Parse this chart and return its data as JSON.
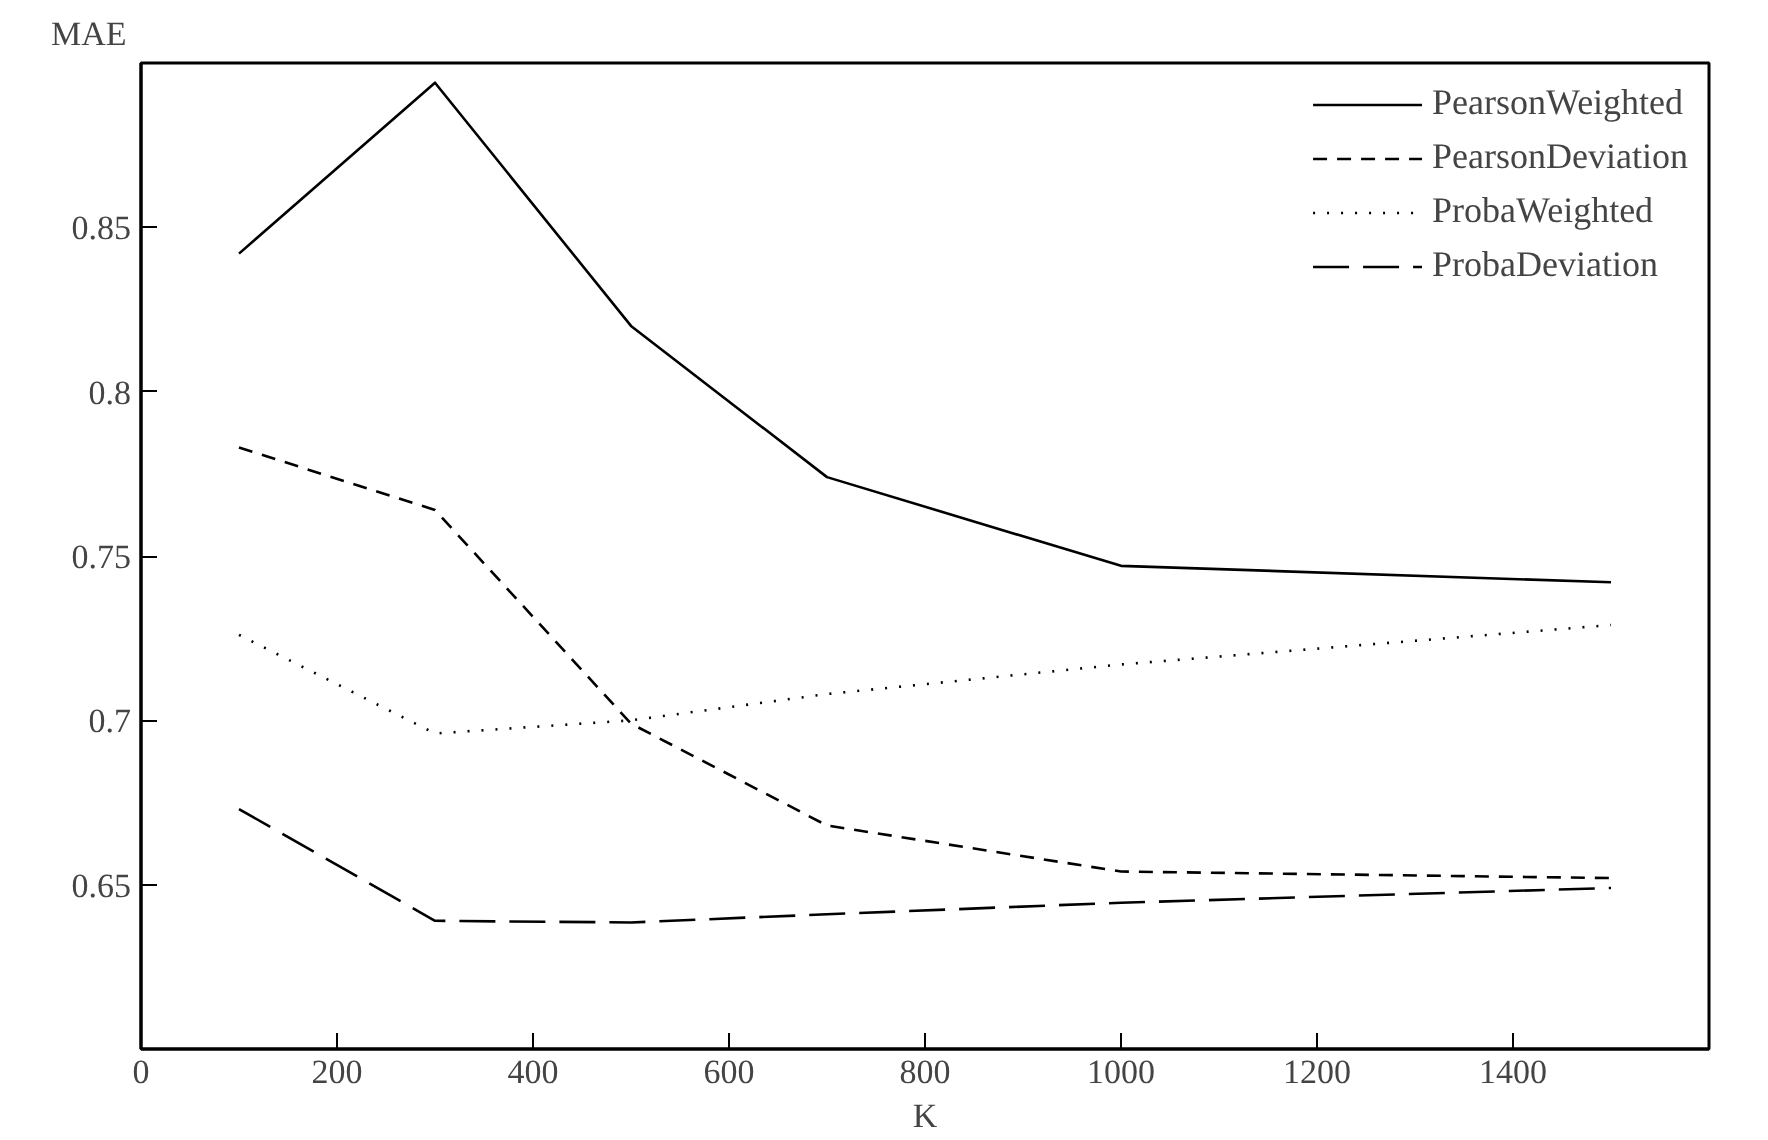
{
  "chart_data": {
    "type": "line",
    "xlabel": "K",
    "ylabel": "MAE",
    "x": [
      100,
      300,
      500,
      700,
      1000,
      1500
    ],
    "xlim": [
      0,
      1600
    ],
    "xticks": [
      0,
      200,
      400,
      600,
      800,
      1000,
      1200,
      1400
    ],
    "ylim": [
      0.6,
      0.9
    ],
    "yticks": [
      0.65,
      0.7,
      0.75,
      0.8,
      0.85
    ],
    "grid": false,
    "legend": "top right",
    "marker": "none",
    "series": [
      {
        "name": "PearsonWeighted",
        "color": "#000000",
        "line_style": "solid",
        "values": [
          0.842,
          0.894,
          0.82,
          0.774,
          0.747,
          0.742
        ]
      },
      {
        "name": "PearsonDeviation",
        "color": "#000000",
        "line_style": "dashed",
        "values": [
          0.783,
          0.764,
          0.699,
          0.668,
          0.654,
          0.652
        ]
      },
      {
        "name": "ProbaWeighted",
        "color": "#000000",
        "line_style": "dotted",
        "values": [
          0.726,
          0.696,
          0.7,
          0.708,
          0.717,
          0.729
        ]
      },
      {
        "name": "ProbaDeviation",
        "color": "#000000",
        "line_style": "dashed",
        "values": [
          0.673,
          0.639,
          0.6385,
          0.641,
          0.6445,
          0.649
        ]
      }
    ]
  }
}
